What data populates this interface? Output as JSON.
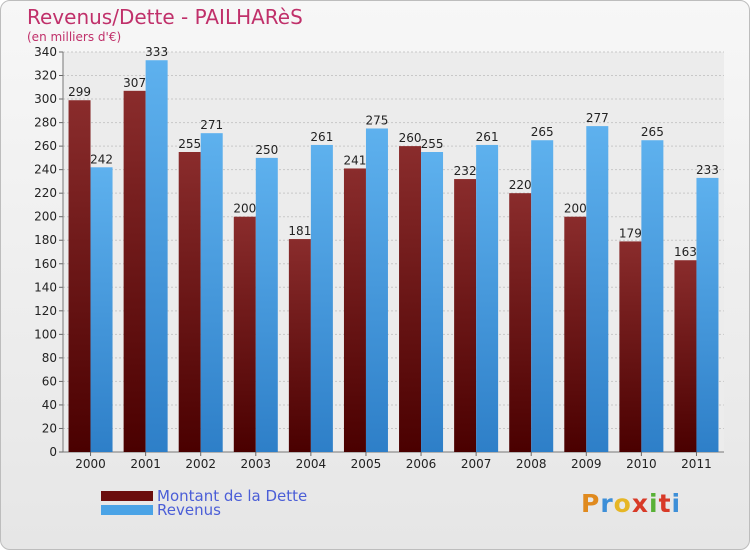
{
  "colors": {
    "dette": "#6b0d0d",
    "revenus": "#4aa3e6",
    "title": "#c0306a",
    "legend_text": "#4b5ed7"
  },
  "logo": {
    "letters": [
      "P",
      "r",
      "o",
      "x",
      "i",
      "t",
      "i"
    ],
    "colors": [
      "#e08a1e",
      "#3d8fd8",
      "#e6b625",
      "#d83a28",
      "#58b136",
      "#d83a28",
      "#3d8fd8"
    ],
    "alt": "Proxiti"
  },
  "chart_data": {
    "type": "bar",
    "title": "Revenus/Dette - PAILHARèS",
    "subtitle": "(en milliers d'€)",
    "categories": [
      "2000",
      "2001",
      "2002",
      "2003",
      "2004",
      "2005",
      "2006",
      "2007",
      "2008",
      "2009",
      "2010",
      "2011"
    ],
    "series": [
      {
        "name": "Montant de la Dette",
        "values": [
          299,
          307,
          255,
          200,
          181,
          241,
          260,
          232,
          220,
          200,
          179,
          163
        ]
      },
      {
        "name": "Revenus",
        "values": [
          242,
          333,
          271,
          250,
          261,
          275,
          255,
          261,
          265,
          277,
          265,
          233
        ]
      }
    ],
    "ylim": [
      0,
      340
    ],
    "yticks": [
      0,
      20,
      40,
      60,
      80,
      100,
      120,
      140,
      160,
      180,
      200,
      220,
      240,
      260,
      280,
      300,
      320,
      340
    ],
    "grid": true,
    "legend": "bottom-left"
  }
}
